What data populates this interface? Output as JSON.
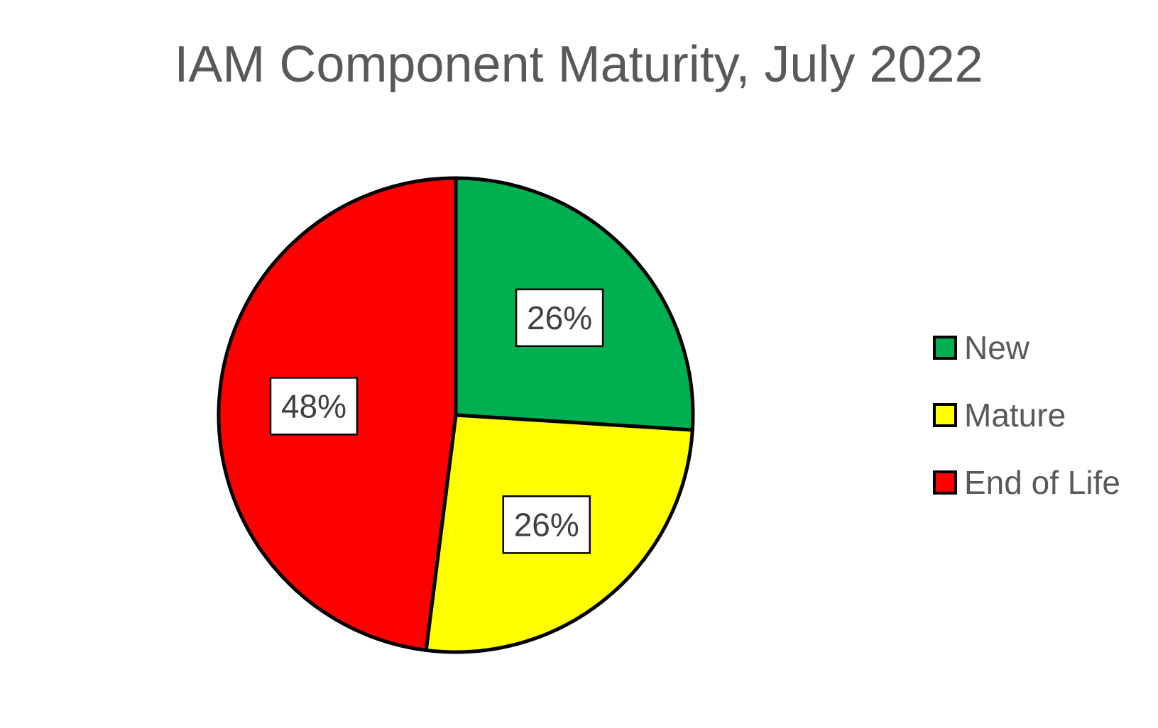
{
  "chart_data": {
    "type": "pie",
    "title": "IAM Component Maturity, July 2022",
    "categories": [
      "New",
      "Mature",
      "End of Life"
    ],
    "values": [
      26,
      26,
      48
    ],
    "data_labels": [
      "26%",
      "26%",
      "48%"
    ],
    "colors": [
      "#00B050",
      "#FFFF00",
      "#FF0000"
    ],
    "legend_position": "right",
    "start_angle_deg": 0,
    "direction": "clockwise"
  }
}
